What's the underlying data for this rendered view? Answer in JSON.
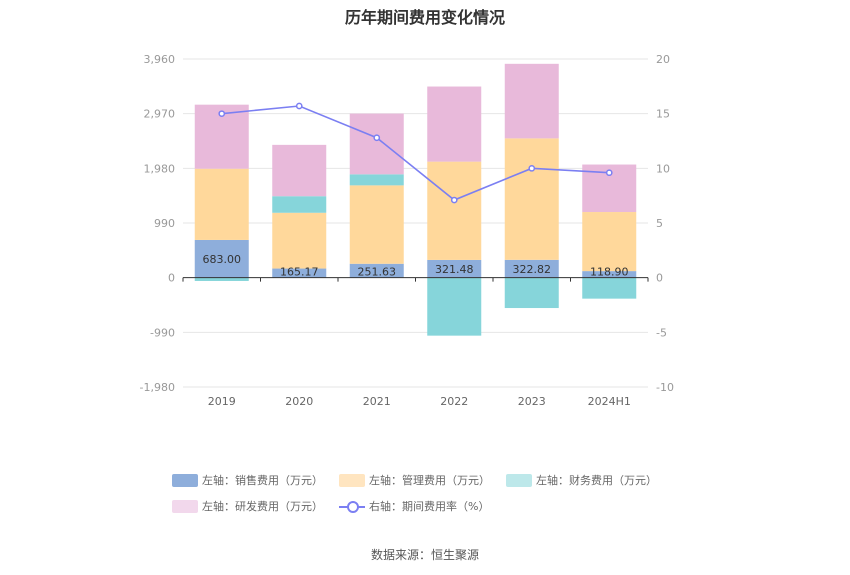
{
  "chart_data": {
    "type": "bar",
    "title": "历年期间费用变化情况",
    "categories": [
      "2019",
      "2020",
      "2021",
      "2022",
      "2023",
      "2024H1"
    ],
    "stacked": true,
    "left_axis": {
      "ylim": [
        -1980,
        3960
      ],
      "ticks": [
        "3,960",
        "2,970",
        "1,980",
        "990",
        "0",
        "-990",
        "-1,980"
      ],
      "tick_values": [
        3960,
        2970,
        1980,
        990,
        0,
        -990,
        -1980
      ]
    },
    "right_axis": {
      "ylim": [
        -10,
        20
      ],
      "ticks": [
        "20",
        "15",
        "10",
        "5",
        "0",
        "-5",
        "-10"
      ],
      "tick_values": [
        20,
        15,
        10,
        5,
        0,
        -5,
        -10
      ]
    },
    "series": [
      {
        "name": "左轴：销售费用（万元）",
        "kind": "bar",
        "axis": "left",
        "color": "#8eaedb",
        "values": [
          683.0,
          165.17,
          251.63,
          321.48,
          322.82,
          118.9
        ],
        "labels": [
          "683.00",
          "165.17",
          "251.63",
          "321.48",
          "322.82",
          "118.90"
        ]
      },
      {
        "name": "左轴：管理费用（万元）",
        "kind": "bar",
        "axis": "left",
        "color": "#ffd89b",
        "values": [
          1290,
          1010,
          1420,
          1780,
          2200,
          1070
        ]
      },
      {
        "name": "左轴：财务费用（万元）",
        "kind": "bar",
        "axis": "left",
        "color": "#86d5da",
        "values": [
          -60,
          300,
          200,
          -1050,
          -550,
          -380
        ]
      },
      {
        "name": "左轴：研发费用（万元）",
        "kind": "bar",
        "axis": "left",
        "color": "#e8b9da",
        "values": [
          1160,
          930,
          1100,
          1360,
          1350,
          860
        ]
      },
      {
        "name": "右轴：期间费用率（%）",
        "kind": "line",
        "axis": "right",
        "color": "#7b7ff2",
        "values": [
          15.0,
          15.7,
          12.8,
          7.1,
          10.0,
          9.6
        ]
      }
    ]
  },
  "legend": [
    {
      "label": "左轴：销售费用（万元）",
      "color": "#8eaedb",
      "kind": "bar"
    },
    {
      "label": "左轴：管理费用（万元）",
      "color": "#ffe5c0",
      "kind": "bar"
    },
    {
      "label": "左轴：财务费用（万元）",
      "color": "#bde8ea",
      "kind": "bar"
    },
    {
      "label": "左轴：研发费用（万元）",
      "color": "#f2d8ec",
      "kind": "bar"
    },
    {
      "label": "右轴：期间费用率（%）",
      "color": "#7b7ff2",
      "kind": "line"
    }
  ],
  "source": "数据来源：恒生聚源"
}
